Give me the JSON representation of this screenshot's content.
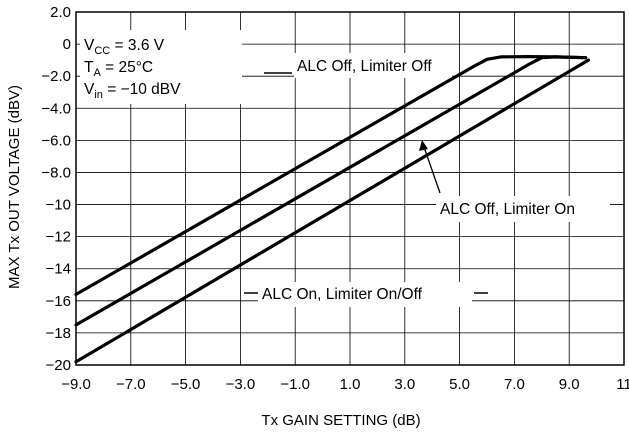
{
  "chart_data": {
    "type": "line",
    "title": "",
    "xlabel": "Tx GAIN SETTING (dB)",
    "ylabel": "MAX Tx OUT VOLTAGE (dBV)",
    "xlim": [
      -9.0,
      11
    ],
    "ylim": [
      -20,
      2.0
    ],
    "x_tick_labels": [
      "−9.0",
      "−7.0",
      "−5.0",
      "−3.0",
      "−1.0",
      "1.0",
      "3.0",
      "5.0",
      "7.0",
      "9.0",
      "11"
    ],
    "y_tick_labels": [
      "2.0",
      "0",
      "−2.0",
      "−4.0",
      "−6.0",
      "−8.0",
      "−10",
      "−12",
      "−14",
      "−16",
      "−18",
      "−20"
    ],
    "grid": true,
    "conditions": {
      "vcc": {
        "main": "V",
        "sub": "CC",
        "rest": " = 3.6 V"
      },
      "ta": {
        "main": "T",
        "sub": "A",
        "rest": " = 25°C"
      },
      "vin": {
        "main": "V",
        "sub": "in",
        "rest": " = −10 dBV"
      }
    },
    "series": [
      {
        "name": "ALC Off, Limiter Off",
        "x": [
          -9.0,
          5.5,
          6.0,
          6.5,
          7.5,
          8.5,
          9.6
        ],
        "y": [
          -15.6,
          -1.4,
          -0.95,
          -0.8,
          -0.78,
          -0.8,
          -0.85
        ]
      },
      {
        "name": "ALC Off, Limiter On",
        "x": [
          -9.0,
          7.6,
          8.0,
          8.5,
          9.6
        ],
        "y": [
          -17.5,
          -1.2,
          -0.85,
          -0.8,
          -0.85
        ]
      },
      {
        "name": "ALC On, Limiter On/Off",
        "x": [
          -9.0,
          9.7
        ],
        "y": [
          -19.8,
          -1.0
        ]
      }
    ]
  }
}
